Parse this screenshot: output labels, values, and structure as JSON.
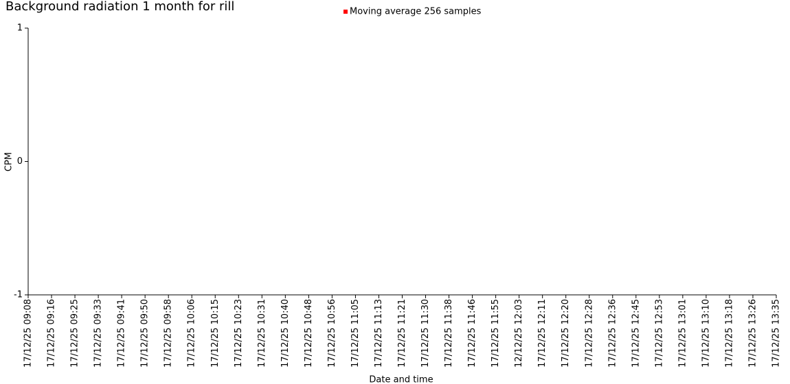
{
  "chart_data": {
    "type": "line",
    "title": "Background radiation 1 month for rill",
    "x_label": "Date and time",
    "y_label": "CPM",
    "categories": [
      "17/12/25 09:08",
      "17/12/25 09:16",
      "17/12/25 09:25",
      "17/12/25 09:33",
      "17/12/25 09:41",
      "17/12/25 09:50",
      "17/12/25 09:58",
      "17/12/25 10:06",
      "17/12/25 10:15",
      "17/12/25 10:23",
      "17/12/25 10:31",
      "17/12/25 10:40",
      "17/12/25 10:48",
      "17/12/25 10:56",
      "17/12/25 11:05",
      "17/12/25 11:13",
      "17/12/25 11:21",
      "17/12/25 11:30",
      "17/12/25 11:38",
      "17/12/25 11:46",
      "17/12/25 11:55",
      "12/12/25 12:03",
      "17/12/25 12:11",
      "17/12/25 12:20",
      "17/12/25 12:28",
      "17/12/25 12:36",
      "17/12/25 12:45",
      "17/12/25 12:53",
      "17/12/25 13:01",
      "17/12/25 13:10",
      "17/12/25 13:18",
      "17/12/25 13:26",
      "17/12/25 13:35"
    ],
    "series": [
      {
        "name": "Moving average 256 samples",
        "color": "#ff0000",
        "values": [
          null,
          null,
          null,
          null,
          null,
          null,
          null,
          null,
          null,
          null,
          null,
          null,
          null,
          null,
          null,
          null,
          null,
          null,
          null,
          null,
          null,
          null,
          null,
          null,
          null,
          null,
          null,
          null,
          null,
          null,
          null,
          null,
          null
        ]
      }
    ],
    "ylim": [
      -1,
      1
    ],
    "yticks": [
      -1,
      0,
      1
    ],
    "legend": "top"
  }
}
